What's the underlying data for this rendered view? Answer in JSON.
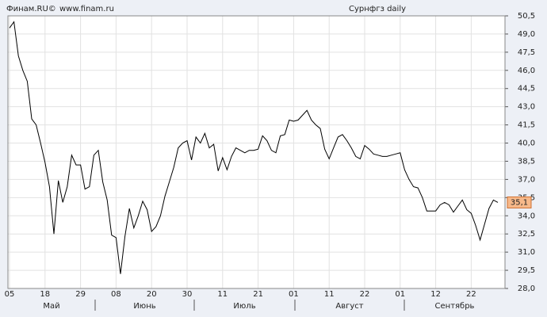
{
  "chart_data": {
    "type": "line",
    "source": "Финам.RU©",
    "url": "www.finam.ru",
    "title": "Сурнфгз daily",
    "categories": [
      "05",
      null,
      null,
      null,
      null,
      null,
      null,
      null,
      "18",
      null,
      null,
      null,
      null,
      null,
      null,
      null,
      "29",
      null,
      null,
      null,
      null,
      null,
      null,
      null,
      "08",
      null,
      null,
      null,
      null,
      null,
      null,
      null,
      "20",
      null,
      null,
      null,
      null,
      null,
      null,
      null,
      "30",
      null,
      null,
      null,
      null,
      null,
      null,
      null,
      "11",
      null,
      null,
      null,
      null,
      null,
      null,
      null,
      "21",
      null,
      null,
      null,
      null,
      null,
      null,
      null,
      "01",
      null,
      null,
      null,
      null,
      null,
      null,
      null,
      "11",
      null,
      null,
      null,
      null,
      null,
      null,
      null,
      "22",
      null,
      null,
      null,
      null,
      null,
      null,
      null,
      "01",
      null,
      null,
      null,
      null,
      null,
      null,
      null,
      "12",
      null,
      null,
      null,
      null,
      null,
      null,
      null,
      "22",
      null,
      null,
      null,
      null,
      null,
      null
    ],
    "months": [
      "Май",
      "Июнь",
      "Июль",
      "Август",
      "Сентябрь"
    ],
    "series": [
      {
        "name": "Сурнфгз",
        "color": "#000000",
        "values": [
          49.5,
          50.0,
          47.2,
          46.0,
          45.1,
          42.0,
          41.5,
          40.0,
          38.4,
          36.4,
          32.5,
          36.9,
          35.1,
          36.4,
          39.0,
          38.2,
          38.2,
          36.2,
          36.4,
          39.0,
          39.4,
          36.8,
          35.3,
          32.4,
          32.2,
          29.2,
          32.3,
          34.6,
          33.0,
          34.0,
          35.2,
          34.5,
          32.7,
          33.1,
          34.0,
          35.6,
          36.8,
          38.0,
          39.6,
          40.0,
          40.2,
          38.6,
          40.5,
          40.0,
          40.8,
          39.6,
          39.9,
          37.7,
          38.8,
          37.8,
          38.9,
          39.6,
          39.4,
          39.2,
          39.4,
          39.4,
          39.5,
          40.6,
          40.2,
          39.4,
          39.2,
          40.6,
          40.7,
          41.9,
          41.8,
          41.9,
          42.3,
          42.7,
          41.9,
          41.5,
          41.2,
          39.5,
          38.7,
          39.6,
          40.5,
          40.7,
          40.2,
          39.6,
          38.9,
          38.7,
          39.8,
          39.5,
          39.1,
          39.0,
          38.9,
          38.9,
          39.0,
          39.1,
          39.2,
          37.8,
          37.0,
          36.4,
          36.3,
          35.5,
          34.4,
          34.4,
          34.4,
          34.9,
          35.1,
          34.9,
          34.3,
          34.8,
          35.3,
          34.5,
          34.2,
          33.2,
          32.0,
          33.3,
          34.6,
          35.3,
          35.1
        ]
      }
    ],
    "last_price": {
      "value": 35.1,
      "label": "35,1"
    },
    "ylim": [
      28.0,
      50.5
    ],
    "yticks": [
      {
        "value": 28.0,
        "label": "28,0"
      },
      {
        "value": 29.5,
        "label": "29,5"
      },
      {
        "value": 31.0,
        "label": "31,0"
      },
      {
        "value": 32.5,
        "label": "32,5"
      },
      {
        "value": 34.0,
        "label": "34,0"
      },
      {
        "value": 35.5,
        "label": "35,5"
      },
      {
        "value": 37.0,
        "label": "37,0"
      },
      {
        "value": 38.5,
        "label": "38,5"
      },
      {
        "value": 40.0,
        "label": "40,0"
      },
      {
        "value": 41.5,
        "label": "41,5"
      },
      {
        "value": 43.0,
        "label": "43,0"
      },
      {
        "value": 44.5,
        "label": "44,5"
      },
      {
        "value": 46.0,
        "label": "46,0"
      },
      {
        "value": 47.5,
        "label": "47,5"
      },
      {
        "value": 49.0,
        "label": "49,0"
      },
      {
        "value": 50.5,
        "label": "50,5"
      }
    ],
    "grid": true
  }
}
